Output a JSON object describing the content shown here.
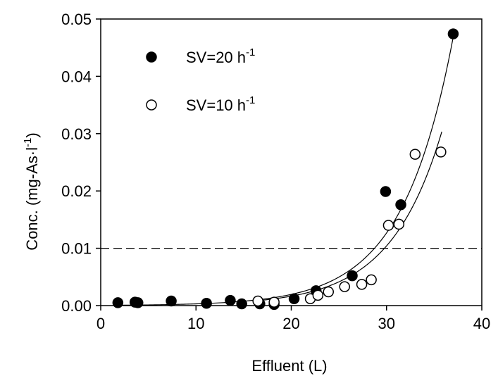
{
  "chart_data": {
    "type": "scatter",
    "title": "",
    "xlabel": "Effluent  (L)",
    "ylabel_parts": {
      "main": "Conc. (mg-As",
      "dot": "·",
      "unit": "l",
      "sup": "-1",
      "close": ")"
    },
    "xlim": [
      0,
      40
    ],
    "ylim": [
      0,
      0.05
    ],
    "x_ticks": [
      "0",
      "10",
      "20",
      "30",
      "40"
    ],
    "y_ticks": [
      "0.00",
      "0.01",
      "0.02",
      "0.03",
      "0.04",
      "0.05"
    ],
    "x_tick_values": [
      0,
      10,
      20,
      30,
      40
    ],
    "y_tick_values": [
      0,
      0.01,
      0.02,
      0.03,
      0.04,
      0.05
    ],
    "grid": false,
    "legend_position": "top-left",
    "reference_line": {
      "y": 0.01,
      "style": "dashed"
    },
    "series": [
      {
        "name": "SV=20 h",
        "name_sup": "-1",
        "marker": "filled-circle",
        "color": "#000000",
        "points": [
          [
            1.8,
            0.0005
          ],
          [
            3.6,
            0.0006
          ],
          [
            3.9,
            0.0005
          ],
          [
            7.4,
            0.0008
          ],
          [
            11.1,
            0.0004
          ],
          [
            13.6,
            0.0009
          ],
          [
            14.8,
            0.0003
          ],
          [
            16.7,
            0.0003
          ],
          [
            18.2,
            0.0002
          ],
          [
            20.3,
            0.0012
          ],
          [
            22.6,
            0.0026
          ],
          [
            26.4,
            0.0052
          ],
          [
            29.9,
            0.0199
          ],
          [
            31.5,
            0.0176
          ],
          [
            37.0,
            0.0474
          ]
        ],
        "fit": {
          "form": "a*exp(b*x)",
          "a": 4.65e-05,
          "b": 0.1869,
          "x_range": [
            1.8,
            37.0
          ]
        }
      },
      {
        "name": "SV=10 h",
        "name_sup": "-1",
        "marker": "open-circle",
        "color": "#000000",
        "points": [
          [
            16.5,
            0.0008
          ],
          [
            18.2,
            0.0006
          ],
          [
            22.0,
            0.0012
          ],
          [
            22.8,
            0.0018
          ],
          [
            23.9,
            0.0024
          ],
          [
            25.6,
            0.0033
          ],
          [
            27.4,
            0.0037
          ],
          [
            28.4,
            0.0045
          ],
          [
            30.2,
            0.014
          ],
          [
            31.3,
            0.0142
          ],
          [
            33.0,
            0.0264
          ],
          [
            35.7,
            0.0268
          ]
        ],
        "fit": {
          "form": "a*exp(b*x)",
          "a": 4.12e-05,
          "b": 0.1844,
          "x_range": [
            16.0,
            35.8
          ]
        }
      }
    ]
  }
}
